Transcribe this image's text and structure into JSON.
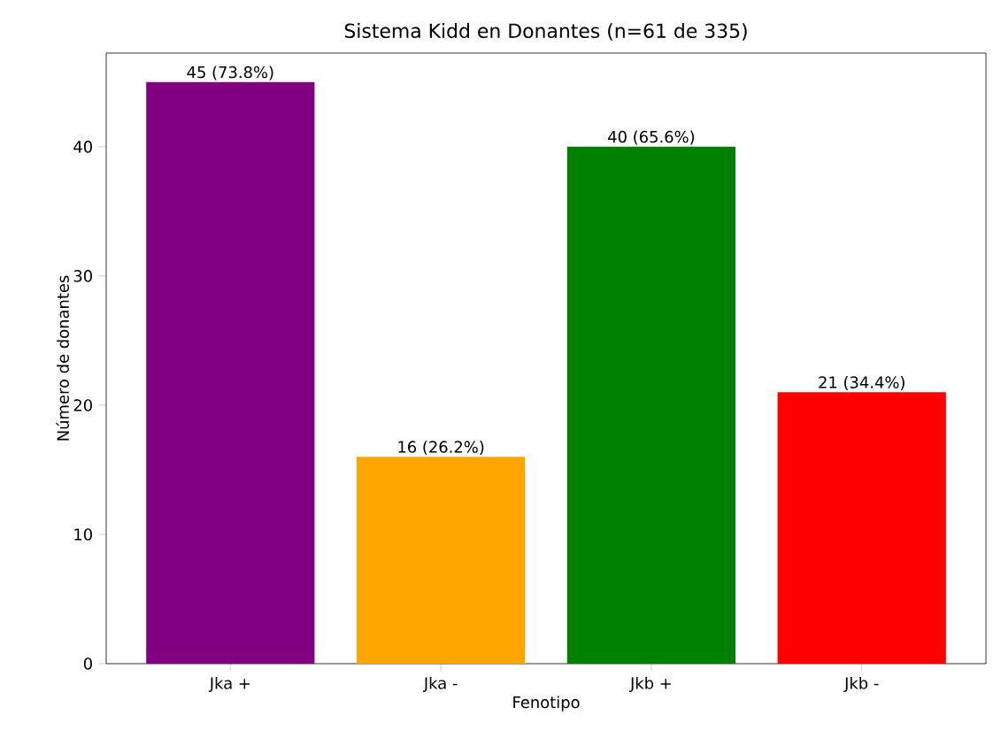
{
  "chart_data": {
    "type": "bar",
    "title": "Sistema Kidd en Donantes (n=61 de 335)",
    "xlabel": "Fenotipo",
    "ylabel": "Número de donantes",
    "categories": [
      "Jka +",
      "Jka -",
      "Jkb +",
      "Jkb -"
    ],
    "values": [
      45,
      16,
      40,
      21
    ],
    "colors": [
      "#800080",
      "#ffa500",
      "#008000",
      "#ff0000"
    ],
    "value_labels": [
      "45 (73.8%)",
      "16 (26.2%)",
      "40 (65.6%)",
      "21 (34.4%)"
    ],
    "ylim": [
      0,
      47.25
    ],
    "yticks": [
      0,
      10,
      20,
      30,
      40
    ],
    "grid": false
  }
}
